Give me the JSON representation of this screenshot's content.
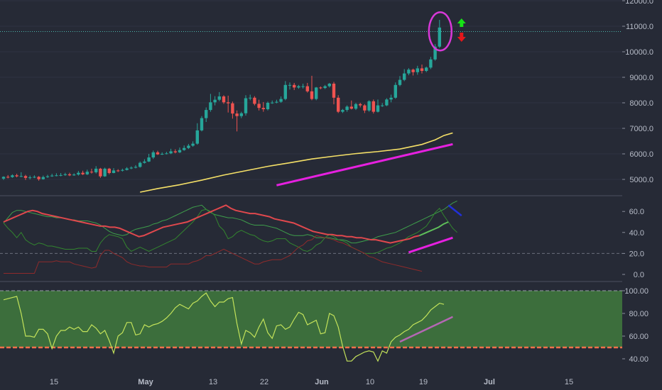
{
  "chart_data": [
    {
      "type": "candlestick",
      "panel": "price",
      "ylim": [
        4500,
        12000
      ],
      "yticks": [
        "5000.0",
        "6000.0",
        "7000.0",
        "8000.0",
        "9000.0",
        "10000.0",
        "11000.0",
        "12000.0"
      ],
      "last_price_line": 10790,
      "candles": [
        [
          5030,
          5100,
          4980,
          5120
        ],
        [
          5100,
          5090,
          5040,
          5170
        ],
        [
          5090,
          5160,
          5060,
          5200
        ],
        [
          5160,
          5120,
          5080,
          5220
        ],
        [
          5120,
          5130,
          5090,
          5280
        ],
        [
          5130,
          5060,
          4980,
          5180
        ],
        [
          5060,
          5080,
          5000,
          5150
        ],
        [
          5080,
          5100,
          5050,
          5160
        ],
        [
          5100,
          5010,
          4950,
          5130
        ],
        [
          5010,
          5090,
          4990,
          5150
        ],
        [
          5090,
          5120,
          5060,
          5180
        ],
        [
          5120,
          5150,
          5100,
          5220
        ],
        [
          5150,
          5160,
          5120,
          5240
        ],
        [
          5160,
          5170,
          5120,
          5250
        ],
        [
          5170,
          5200,
          5140,
          5260
        ],
        [
          5200,
          5160,
          5130,
          5260
        ],
        [
          5160,
          5190,
          5140,
          5240
        ],
        [
          5190,
          5260,
          5150,
          5330
        ],
        [
          5260,
          5200,
          5170,
          5340
        ],
        [
          5200,
          5300,
          5170,
          5380
        ],
        [
          5300,
          5280,
          5230,
          5420
        ],
        [
          5280,
          5420,
          5230,
          5520
        ],
        [
          5420,
          5120,
          5060,
          5450
        ],
        [
          5120,
          5420,
          5100,
          5460
        ],
        [
          5420,
          5250,
          5200,
          5450
        ],
        [
          5250,
          5350,
          5240,
          5440
        ],
        [
          5350,
          5340,
          5290,
          5400
        ],
        [
          5340,
          5370,
          5310,
          5420
        ],
        [
          5370,
          5430,
          5350,
          5480
        ],
        [
          5430,
          5460,
          5400,
          5510
        ],
        [
          5460,
          5490,
          5430,
          5560
        ],
        [
          5490,
          5650,
          5460,
          5700
        ],
        [
          5650,
          5700,
          5620,
          5790
        ],
        [
          5700,
          5860,
          5680,
          6000
        ],
        [
          5860,
          6060,
          5800,
          6130
        ],
        [
          6060,
          5980,
          5960,
          6120
        ],
        [
          5980,
          6000,
          5960,
          6060
        ],
        [
          6000,
          6020,
          5980,
          6080
        ],
        [
          6020,
          6100,
          5990,
          6200
        ],
        [
          6100,
          6060,
          6020,
          6180
        ],
        [
          6060,
          6150,
          6030,
          6250
        ],
        [
          6150,
          6230,
          6120,
          6330
        ],
        [
          6230,
          6320,
          6190,
          6390
        ],
        [
          6320,
          6400,
          6280,
          6490
        ],
        [
          6400,
          6920,
          6360,
          7200
        ],
        [
          6920,
          7400,
          6880,
          7480
        ],
        [
          7400,
          7720,
          7250,
          7820
        ],
        [
          7720,
          8020,
          7650,
          8350
        ],
        [
          8020,
          8120,
          7900,
          8260
        ],
        [
          8120,
          8250,
          8060,
          8420
        ],
        [
          8250,
          8020,
          7960,
          8300
        ],
        [
          8020,
          7980,
          7620,
          8280
        ],
        [
          7980,
          7580,
          7380,
          8050
        ],
        [
          7580,
          7480,
          6880,
          7700
        ],
        [
          7480,
          7590,
          7400,
          7650
        ],
        [
          7590,
          8180,
          7500,
          8300
        ],
        [
          8180,
          8200,
          8100,
          8320
        ],
        [
          8200,
          7960,
          7900,
          8260
        ],
        [
          7960,
          7800,
          7700,
          8120
        ],
        [
          7800,
          7750,
          7650,
          8030
        ],
        [
          7750,
          8000,
          7700,
          8050
        ],
        [
          8000,
          8010,
          7960,
          8090
        ],
        [
          8010,
          8040,
          7980,
          8120
        ],
        [
          8040,
          8150,
          8000,
          8250
        ],
        [
          8150,
          8700,
          8100,
          8850
        ],
        [
          8700,
          8700,
          8520,
          8800
        ],
        [
          8700,
          8600,
          8500,
          8780
        ],
        [
          8600,
          8650,
          8550,
          8700
        ],
        [
          8650,
          8650,
          8560,
          8750
        ],
        [
          8650,
          8450,
          8400,
          8780
        ],
        [
          8450,
          8150,
          8100,
          9060
        ],
        [
          8150,
          8600,
          8100,
          8620
        ],
        [
          8600,
          8580,
          8530,
          8640
        ],
        [
          8580,
          8650,
          8540,
          8700
        ],
        [
          8650,
          8750,
          8600,
          8780
        ],
        [
          8750,
          8200,
          7940,
          8820
        ],
        [
          8200,
          7650,
          7600,
          8300
        ],
        [
          7650,
          7720,
          7600,
          7760
        ],
        [
          7720,
          7850,
          7650,
          7900
        ],
        [
          7850,
          7770,
          7740,
          8090
        ],
        [
          7770,
          7950,
          7720,
          8000
        ],
        [
          7950,
          7900,
          7820,
          8000
        ],
        [
          7900,
          7700,
          7600,
          7950
        ],
        [
          7700,
          8060,
          7650,
          8100
        ],
        [
          8060,
          7650,
          7580,
          8130
        ],
        [
          7650,
          7900,
          7620,
          8130
        ],
        [
          7900,
          7900,
          7840,
          7990
        ],
        [
          7900,
          8130,
          7870,
          8180
        ],
        [
          8130,
          8200,
          8020,
          8320
        ],
        [
          8200,
          8700,
          8160,
          8800
        ],
        [
          8700,
          8900,
          8650,
          9050
        ],
        [
          8900,
          9150,
          8850,
          9320
        ],
        [
          9150,
          9300,
          9080,
          9360
        ],
        [
          9300,
          9200,
          9070,
          9340
        ],
        [
          9200,
          9350,
          9100,
          9450
        ],
        [
          9350,
          9250,
          9150,
          9500
        ],
        [
          9250,
          9380,
          9200,
          9420
        ],
        [
          9380,
          9700,
          9320,
          9800
        ],
        [
          9700,
          10200,
          9650,
          10300
        ],
        [
          10200,
          10950,
          10150,
          11250
        ]
      ],
      "moving_average": [
        [
          31,
          4500
        ],
        [
          35,
          4640
        ],
        [
          40,
          4790
        ],
        [
          45,
          4970
        ],
        [
          50,
          5170
        ],
        [
          55,
          5340
        ],
        [
          60,
          5510
        ],
        [
          65,
          5650
        ],
        [
          70,
          5800
        ],
        [
          75,
          5910
        ],
        [
          80,
          6010
        ],
        [
          85,
          6090
        ],
        [
          90,
          6190
        ],
        [
          95,
          6370
        ],
        [
          98,
          6550
        ],
        [
          100,
          6720
        ],
        [
          102,
          6820
        ]
      ],
      "trend_line": [
        [
          62,
          4770
        ],
        [
          102,
          6380
        ]
      ],
      "down_arrow": true,
      "up_arrow": true
    },
    {
      "type": "line",
      "panel": "indicator",
      "ylim": [
        -5,
        72
      ],
      "yticks": [
        "0.0",
        "20.0",
        "40.0",
        "60.0"
      ],
      "reference_line": 20,
      "series": [
        {
          "color": "#3e9e4b",
          "values": [
            49,
            54,
            59,
            61,
            61,
            60,
            59,
            58,
            57,
            56,
            55,
            55,
            54,
            54,
            53,
            52,
            52,
            51,
            51,
            51,
            50,
            49,
            47,
            44,
            41,
            39,
            38,
            37,
            38,
            41,
            43,
            44,
            45,
            46,
            48,
            49,
            51,
            52,
            54,
            56,
            58,
            60,
            62,
            64,
            65,
            66,
            62,
            59,
            57,
            56,
            55,
            54,
            54,
            53,
            52,
            50,
            48,
            47,
            47,
            47,
            46,
            45,
            44,
            42,
            40,
            38,
            37,
            37,
            37,
            38,
            37,
            35,
            35,
            35,
            35,
            34,
            33,
            33,
            32,
            30,
            30,
            31,
            32,
            33,
            34,
            36,
            37,
            38,
            39,
            40,
            42,
            44,
            46,
            48,
            50,
            52,
            54,
            56,
            58,
            60,
            62,
            65,
            68,
            70
          ]
        },
        {
          "color": "#33862f",
          "values": [
            49,
            44,
            40,
            35,
            40,
            33,
            30,
            28,
            30,
            29,
            27,
            27,
            26,
            25,
            24,
            24,
            24,
            25,
            25,
            25,
            22,
            22,
            30,
            35,
            38,
            37,
            36,
            34,
            26,
            22,
            24,
            26,
            24,
            22,
            24,
            26,
            28,
            30,
            32,
            34,
            38,
            42,
            46,
            50,
            55,
            61,
            62,
            60,
            56,
            46,
            42,
            34,
            36,
            40,
            42,
            40,
            38,
            37,
            34,
            32,
            31,
            32,
            34,
            34,
            34,
            30,
            28,
            26,
            23,
            22,
            24,
            28,
            30,
            35,
            38,
            36,
            33,
            32,
            30,
            26,
            24,
            22,
            20,
            20,
            20,
            21,
            23,
            25,
            26,
            28,
            30,
            33,
            36,
            38,
            40,
            43,
            46,
            52,
            59,
            63,
            56,
            50,
            44,
            40
          ]
        },
        {
          "color": "#8f2a2b",
          "values": [
            1,
            1,
            1,
            1,
            1,
            1,
            1,
            1,
            12,
            12,
            12,
            12,
            13,
            12,
            12,
            12,
            10,
            9,
            8,
            7,
            6,
            7,
            18,
            23,
            23,
            20,
            18,
            16,
            12,
            10,
            9,
            8,
            8,
            7,
            7,
            7,
            7,
            7,
            10,
            10,
            10,
            10,
            10,
            12,
            13,
            15,
            18,
            18,
            20,
            22,
            24,
            22,
            20,
            18,
            16,
            14,
            12,
            10,
            10,
            12,
            13,
            14,
            14,
            14,
            16,
            18,
            22,
            26,
            28,
            32,
            33,
            37,
            36,
            35,
            34,
            33,
            31,
            30,
            28,
            26,
            24,
            22,
            20,
            17,
            16,
            14,
            12,
            11,
            10,
            9,
            8,
            7,
            6,
            5,
            4,
            3
          ]
        }
      ],
      "main_line": {
        "color_down": "#e0484d",
        "color_up": "#5fbf5a",
        "values": [
          50,
          52,
          54,
          56,
          58,
          60,
          61,
          60,
          58,
          57,
          56,
          55,
          54,
          53,
          52,
          51,
          50,
          49,
          48,
          47,
          46,
          46,
          45,
          45,
          44,
          42,
          40,
          38,
          36,
          37,
          39,
          41,
          43,
          45,
          46,
          47,
          48,
          49,
          50,
          52,
          54,
          56,
          58,
          60,
          62,
          64,
          66,
          63,
          61,
          60,
          59,
          58,
          58,
          57,
          56,
          55,
          53,
          52,
          51,
          50,
          49,
          47,
          45,
          43,
          41,
          40,
          39,
          38,
          38,
          37,
          37,
          36,
          36,
          35,
          35,
          34,
          33,
          33,
          32,
          31,
          30,
          31,
          32,
          33,
          34,
          36,
          37,
          39,
          41,
          43,
          45,
          48,
          50
        ]
      },
      "trend_line": [
        [
          92,
          21
        ],
        [
          102,
          35
        ]
      ],
      "blue_line": [
        [
          101,
          66
        ],
        [
          104,
          56
        ]
      ]
    },
    {
      "type": "line",
      "panel": "rsi",
      "ylim": [
        30,
        103
      ],
      "yticks": [
        "40.00",
        "60.00",
        "80.00",
        "100.00"
      ],
      "band": [
        50,
        100
      ],
      "series": [
        {
          "color": "#c3e25a",
          "values": [
            92,
            93,
            94,
            95,
            80,
            60,
            60,
            59,
            66,
            66,
            62,
            49,
            60,
            65,
            65,
            68,
            66,
            68,
            64,
            64,
            70,
            67,
            62,
            65,
            56,
            45,
            60,
            63,
            72,
            72,
            61,
            62,
            70,
            68,
            70,
            71,
            73,
            76,
            80,
            85,
            88,
            86,
            84,
            89,
            91,
            95,
            98,
            91,
            86,
            90,
            90,
            93,
            94,
            71,
            53,
            65,
            63,
            59,
            68,
            75,
            63,
            58,
            69,
            70,
            66,
            68,
            75,
            81,
            79,
            70,
            72,
            74,
            62,
            63,
            80,
            78,
            68,
            51,
            38,
            38,
            42,
            44,
            46,
            47,
            46,
            38,
            47,
            45,
            55,
            59,
            61,
            64,
            66,
            70,
            72,
            74,
            78,
            83,
            86,
            89,
            88
          ]
        }
      ],
      "trend_line": [
        [
          90,
          55
        ],
        [
          102,
          77
        ]
      ]
    }
  ],
  "x_axis": {
    "ticks": [
      "15",
      "May",
      "13",
      "22",
      "Jun",
      "10",
      "19",
      "Jul",
      "15"
    ]
  }
}
